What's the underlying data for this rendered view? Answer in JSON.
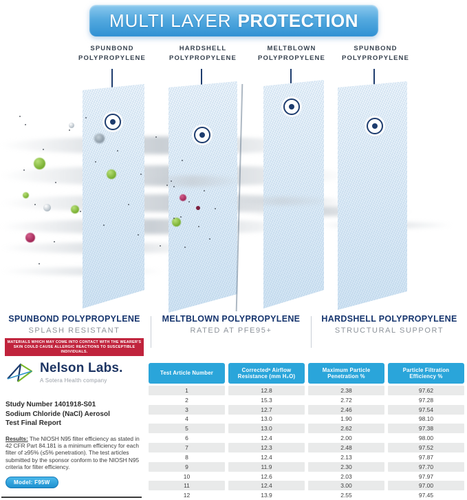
{
  "header": {
    "title_light": "MULTI LAYER",
    "title_bold": "PROTECTION"
  },
  "diagram": {
    "layers": [
      {
        "line1": "SPUNBOND",
        "line2": "POLYPROPYLENE"
      },
      {
        "line1": "HARDSHELL",
        "line2": "POLYPROPYLENE"
      },
      {
        "line1": "MELTBLOWN",
        "line2": "POLYPROPYLENE"
      },
      {
        "line1": "SPUNBOND",
        "line2": "POLYPROPYLENE"
      }
    ]
  },
  "features": [
    {
      "title": "SPUNBOND POLYPROPYLENE",
      "subtitle": "SPLASH RESISTANT",
      "warning": "MATERIALS WHICH MAY COME INTO CONTACT WITH THE WEARER'S SKIN COULD CAUSE ALLERGIC REACTIONS TO SUSCEPTIBLE INDIVIDUALS."
    },
    {
      "title": "MELTBLOWN POLYPROPYLENE",
      "subtitle": "RATED AT PFE95+"
    },
    {
      "title": "HARDSHELL POLYPROPYLENE",
      "subtitle": "STRUCTURAL SUPPORT"
    }
  ],
  "lab": {
    "logo_name": "Nelson Labs.",
    "logo_subtitle": "A Sotera Health company",
    "study_lines": [
      "Study Number 1401918-S01",
      "Sodium Chloride (NaCl) Aerosol",
      "Test Final Report"
    ],
    "results_label": "Results:",
    "results_text": " The NIOSH N95 filter efficiency as stated in 42 CFR Part 84.181 is a minimum efficiency for each filter of ≥95% (≤5% penetration). The test articles submitted by the sponsor conform to the NIOSH N95 criteria for filter efficiency.",
    "model_badge": "Model: F95W"
  },
  "table": {
    "columns": [
      "Test Article Number",
      "Correctedᵃ Airflow\nResistance (mm H₂O)",
      "Maximum Particle\nPenetration %",
      "Particle Filtration\nEfficiency %"
    ],
    "rows": [
      [
        "1",
        "12.8",
        "2.38",
        "97.62"
      ],
      [
        "2",
        "15.3",
        "2.72",
        "97.28"
      ],
      [
        "3",
        "12.7",
        "2.46",
        "97.54"
      ],
      [
        "4",
        "13.0",
        "1.90",
        "98.10"
      ],
      [
        "5",
        "13.0",
        "2.62",
        "97.38"
      ],
      [
        "6",
        "12.4",
        "2.00",
        "98.00"
      ],
      [
        "7",
        "12.3",
        "2.48",
        "97.52"
      ],
      [
        "8",
        "12.4",
        "2.13",
        "97.87"
      ],
      [
        "9",
        "11.9",
        "2.30",
        "97.70"
      ],
      [
        "10",
        "12.6",
        "2.03",
        "97.97"
      ],
      [
        "11",
        "12.4",
        "3.00",
        "97.00"
      ],
      [
        "12",
        "13.9",
        "2.55",
        "97.45"
      ]
    ]
  },
  "colors": {
    "accent_blue": "#2aa5da",
    "navy": "#16356e",
    "warning_red": "#c0233c",
    "sheet_blue": "#e0eef9"
  }
}
